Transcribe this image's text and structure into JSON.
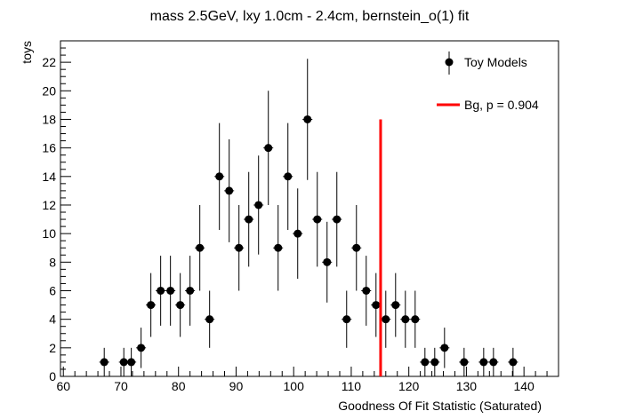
{
  "chart_data": {
    "type": "scatter",
    "title": "mass 2.5GeV, lxy 1.0cm - 2.4cm, bernstein_o(1) fit",
    "xlabel": "Goodness Of Fit Statistic (Saturated)",
    "ylabel": "toys",
    "xlim": [
      59.5,
      146
    ],
    "ylim": [
      0,
      23.5
    ],
    "x_ticks": [
      60,
      70,
      80,
      90,
      100,
      110,
      120,
      130,
      140
    ],
    "y_ticks": [
      0,
      2,
      4,
      6,
      8,
      10,
      12,
      14,
      16,
      18,
      20,
      22
    ],
    "bin_width": 1.7,
    "grid": false,
    "legend_position": "top-right",
    "series": [
      {
        "name": "Toy Models",
        "color": "#000000",
        "x": [
          67.1,
          70.5,
          71.8,
          73.5,
          75.2,
          76.9,
          78.6,
          80.3,
          82.0,
          83.7,
          85.4,
          87.1,
          88.8,
          90.5,
          92.2,
          93.9,
          95.6,
          97.3,
          99.0,
          100.7,
          102.4,
          104.1,
          105.8,
          107.5,
          109.2,
          110.9,
          112.6,
          114.3,
          116.0,
          117.7,
          119.4,
          121.1,
          122.8,
          124.5,
          126.2,
          129.6,
          133.0,
          134.7,
          138.1
        ],
        "y": [
          1,
          1,
          1,
          2,
          5,
          6,
          6,
          5,
          6,
          9,
          4,
          14,
          13,
          9,
          11,
          12,
          16,
          9,
          14,
          10,
          18,
          11,
          8,
          11,
          4,
          9,
          6,
          5,
          4,
          5,
          4,
          4,
          1,
          1,
          2,
          1,
          1,
          1,
          1
        ]
      },
      {
        "name": "Bg, p = 0.904",
        "color": "#ff0000",
        "x": [
          115.1,
          115.1
        ],
        "y": [
          0,
          18
        ]
      }
    ]
  }
}
